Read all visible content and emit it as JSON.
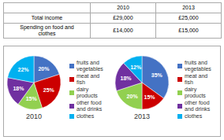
{
  "chart_data": [
    {
      "type": "table",
      "columns": [
        "2010",
        "2013"
      ],
      "rows": [
        [
          "Total income",
          "£29,000",
          "£25,000"
        ],
        [
          "Spending on food and\nclothes",
          "£14,000",
          "£15,000"
        ]
      ]
    },
    {
      "type": "pie",
      "title": "2010",
      "categories": [
        "fruits and\nvegetables",
        "meat and\nfish",
        "dairy\nproducts",
        "other food\nand drinks",
        "clothes"
      ],
      "values": [
        20,
        25,
        15,
        18,
        22
      ],
      "value_labels": [
        "20%",
        "25%",
        "15%",
        "18%",
        "22%"
      ],
      "colors": [
        "#4472C4",
        "#CC0000",
        "#92D050",
        "#7030A0",
        "#00B0F0"
      ],
      "data_labels": true,
      "legend": "right"
    },
    {
      "type": "pie",
      "title": "2013",
      "categories": [
        "fruits and\nvegetables",
        "meat and\nfish",
        "dairy\nproducts",
        "other food\nand drinks",
        "clothes"
      ],
      "values": [
        35,
        15,
        20,
        18,
        12
      ],
      "value_labels": [
        "35%",
        "15%",
        "20%",
        "18%",
        "12%"
      ],
      "colors": [
        "#4472C4",
        "#CC0000",
        "#92D050",
        "#7030A0",
        "#00B0F0"
      ],
      "data_labels": true,
      "legend": "right"
    }
  ]
}
